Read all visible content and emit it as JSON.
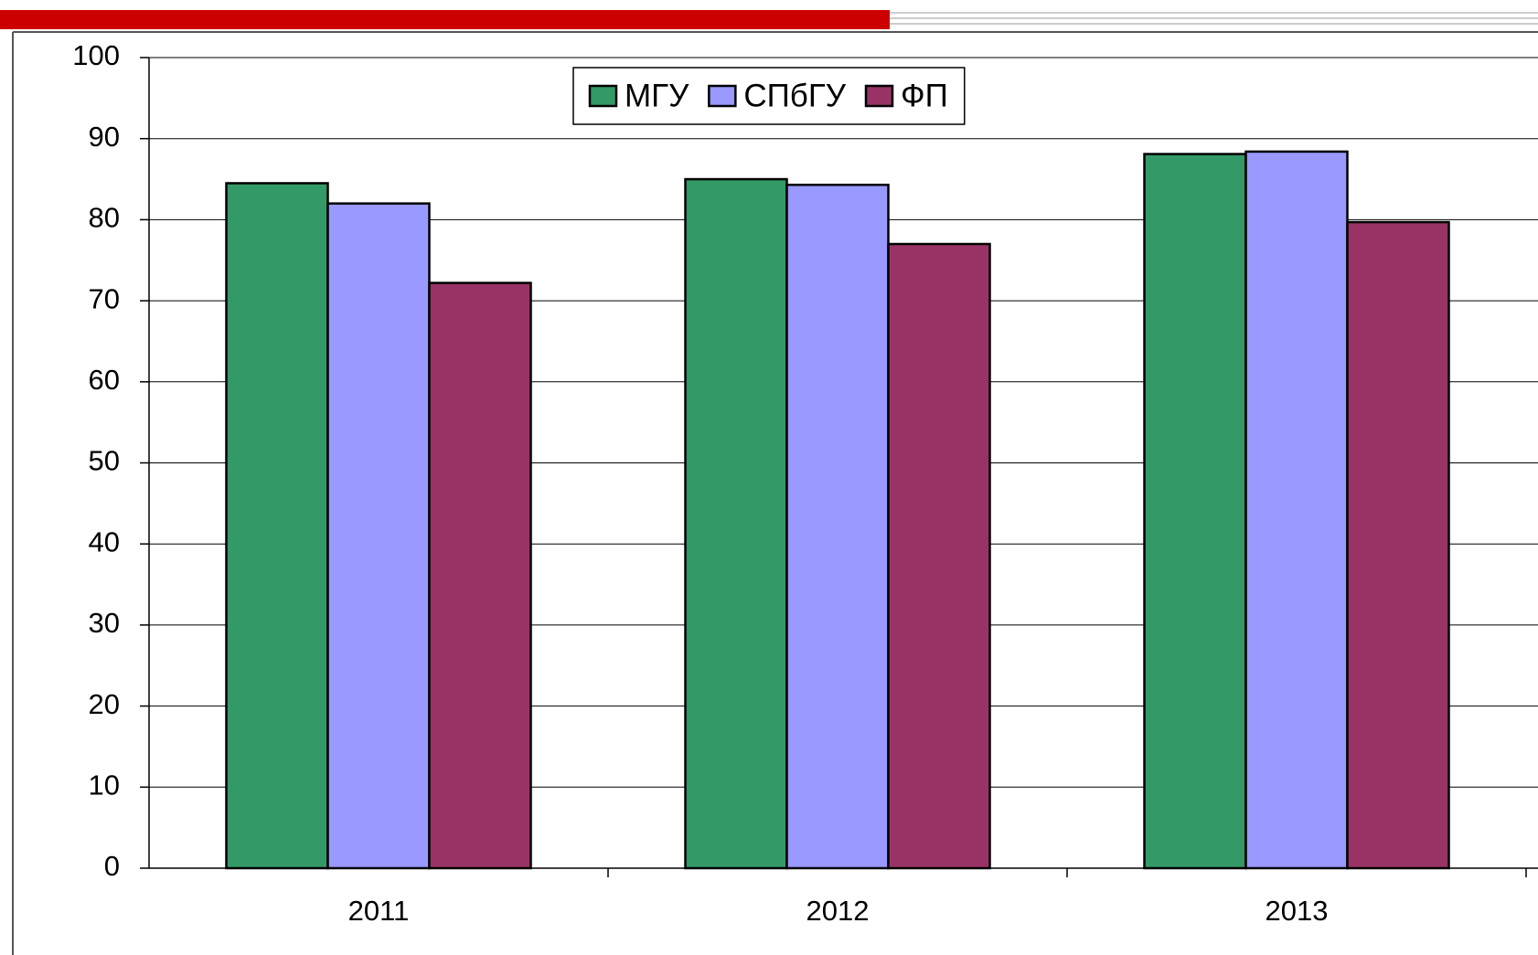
{
  "chart_data": {
    "type": "bar",
    "categories": [
      "2011",
      "2012",
      "2013"
    ],
    "series": [
      {
        "name": "МГУ",
        "color": "#339966",
        "values": [
          84.5,
          85.0,
          88.1
        ]
      },
      {
        "name": "СПбГУ",
        "color": "#9999ff",
        "values": [
          82.0,
          84.3,
          88.4
        ]
      },
      {
        "name": "ФП",
        "color": "#993366",
        "values": [
          72.2,
          77.0,
          79.7
        ]
      }
    ],
    "ylim": [
      0,
      100
    ],
    "yticks": [
      0,
      10,
      20,
      30,
      40,
      50,
      60,
      70,
      80,
      90,
      100
    ],
    "grid": true,
    "legend": "top"
  }
}
